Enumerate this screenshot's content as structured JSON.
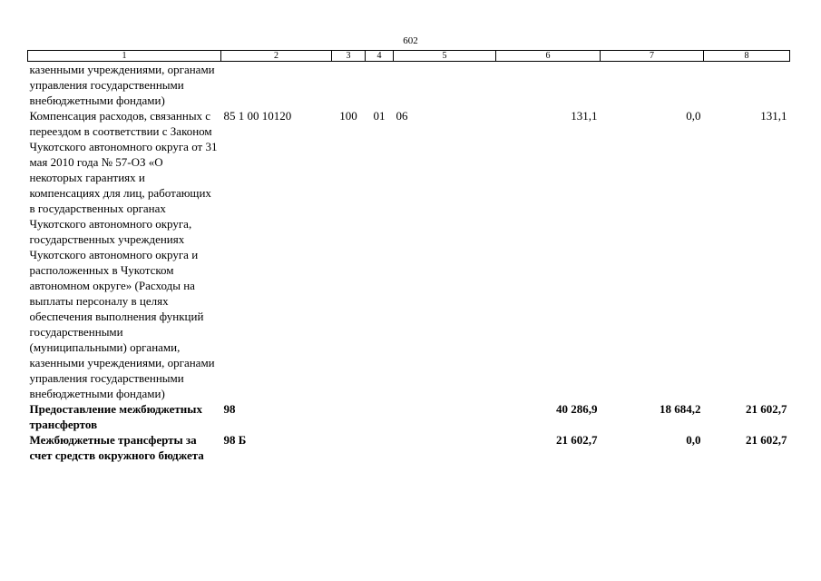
{
  "page_number": "602",
  "header": [
    "1",
    "2",
    "3",
    "4",
    "5",
    "6",
    "7",
    "8"
  ],
  "rows": [
    {
      "name": "казенными учреждениями, органами управления государственными внебюджетными фондами)",
      "csr": "",
      "vr": "",
      "rz": "",
      "pr": "",
      "col6": "",
      "col7": "",
      "col8": ""
    },
    {
      "name": "Компенсация расходов, связанных с переездом в соответствии с Законом Чукотского автономного округа от 31 мая 2010 года № 57-ОЗ «О некоторых гарантиях и компенсациях для лиц, работающих в государственных органах Чукотского автономного округа, государственных учреждениях Чукотского автономного округа и расположенных в Чукотском автономном округе» (Расходы на выплаты персоналу в целях обеспечения выполнения функций государственными (муниципальными) органами, казенными учреждениями, органами управления государственными внебюджетными фондами)",
      "csr": "85 1 00 10120",
      "vr": "100",
      "rz": "01",
      "pr": "06",
      "col6": "131,1",
      "col7": "0,0",
      "col8": "131,1"
    },
    {
      "name": "Предоставление межбюджетных трансфертов",
      "csr": "98",
      "vr": "",
      "rz": "",
      "pr": "",
      "col6": "40 286,9",
      "col7": "18 684,2",
      "col8": "21 602,7"
    },
    {
      "name": "Межбюджетные трансферты за счет средств окружного бюджета",
      "csr": "98 Б",
      "vr": "",
      "rz": "",
      "pr": "",
      "col6": "21 602,7",
      "col7": "0,0",
      "col8": "21 602,7"
    }
  ]
}
